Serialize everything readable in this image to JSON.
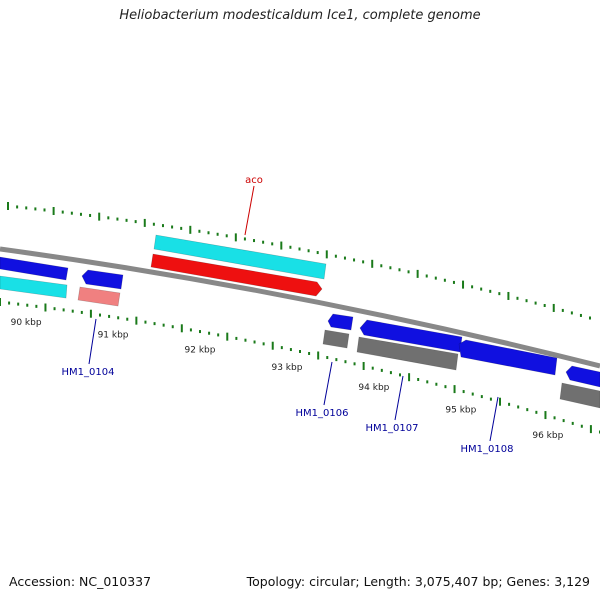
{
  "header": {
    "title": "Heliobacterium modesticaldum Ice1, complete genome"
  },
  "footer": {
    "accession": "Accession: NC_010337",
    "summary": "Topology: circular; Length: 3,075,407 bp; Genes: 3,129"
  },
  "scale": {
    "ticks": [
      {
        "label": "90 kbp",
        "kbp": 90
      },
      {
        "label": "91 kbp",
        "kbp": 91
      },
      {
        "label": "92 kbp",
        "kbp": 92
      },
      {
        "label": "93 kbp",
        "kbp": 93
      },
      {
        "label": "94 kbp",
        "kbp": 94
      },
      {
        "label": "95 kbp",
        "kbp": 95
      },
      {
        "label": "96 kbp",
        "kbp": 96
      }
    ]
  },
  "colors": {
    "backbone": "#888888",
    "forward_gene": "#1010e0",
    "reverse_gene": "#1010e0",
    "cyan_feature": "#19e0e6",
    "red_feature": "#ee1010",
    "pink_feature": "#f08080",
    "gray_feature": "#707070",
    "tick": "#1a7a1a",
    "label_red": "#cc0000",
    "label_blue": "#000099"
  },
  "genes": [
    {
      "label": "aco",
      "color": "label_red"
    },
    {
      "label": "HM1_0104",
      "color": "label_blue"
    },
    {
      "label": "HM1_0106",
      "color": "label_blue"
    },
    {
      "label": "HM1_0107",
      "color": "label_blue"
    },
    {
      "label": "HM1_0108",
      "color": "label_blue"
    }
  ]
}
